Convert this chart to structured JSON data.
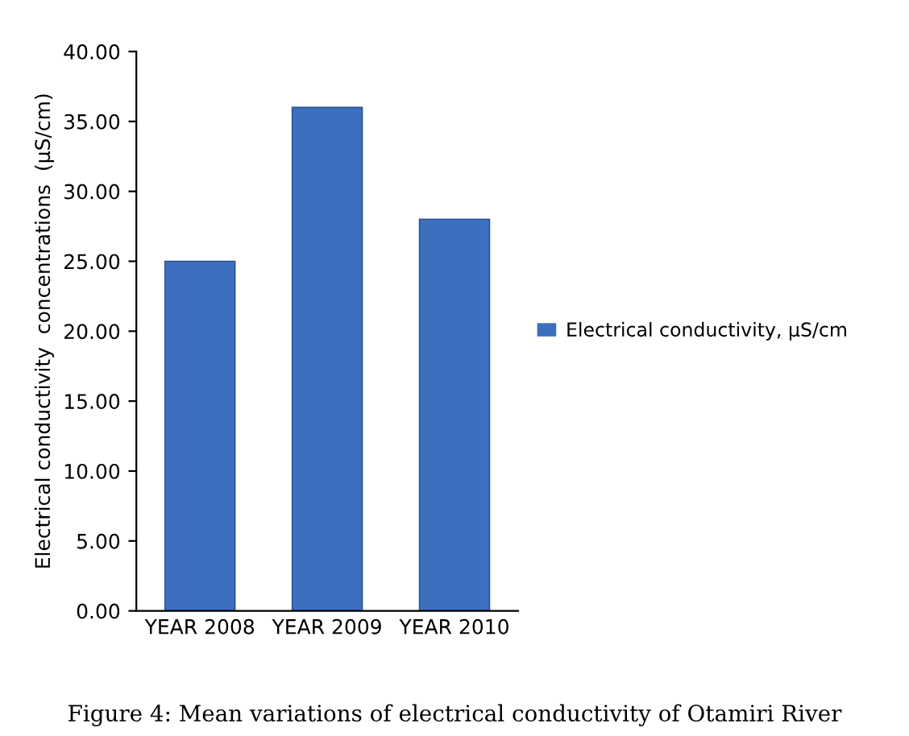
{
  "chart_data": {
    "type": "bar",
    "categories": [
      "YEAR 2008",
      "YEAR 2009",
      "YEAR 2010"
    ],
    "series": [
      {
        "name": "Electrical conductivity, µS/cm",
        "color": "#3d6fbf",
        "values": [
          25.0,
          36.0,
          28.0
        ]
      }
    ],
    "ylabel": "Electrical conductivity  concentrations  (µS/cm)",
    "ylim": [
      0,
      40
    ],
    "yticks": [
      {
        "value": 0,
        "label": "0.00"
      },
      {
        "value": 5,
        "label": "5.00"
      },
      {
        "value": 10,
        "label": "10.00"
      },
      {
        "value": 15,
        "label": "15.00"
      },
      {
        "value": 20,
        "label": "20.00"
      },
      {
        "value": 25,
        "label": "25.00"
      },
      {
        "value": 30,
        "label": "30.00"
      },
      {
        "value": 35,
        "label": "35.00"
      },
      {
        "value": 40,
        "label": "40.00"
      }
    ],
    "grid": false,
    "legend": "right",
    "annotations": [
      "Figure 4: Mean variations of electrical conductivity of Otamiri River"
    ]
  }
}
